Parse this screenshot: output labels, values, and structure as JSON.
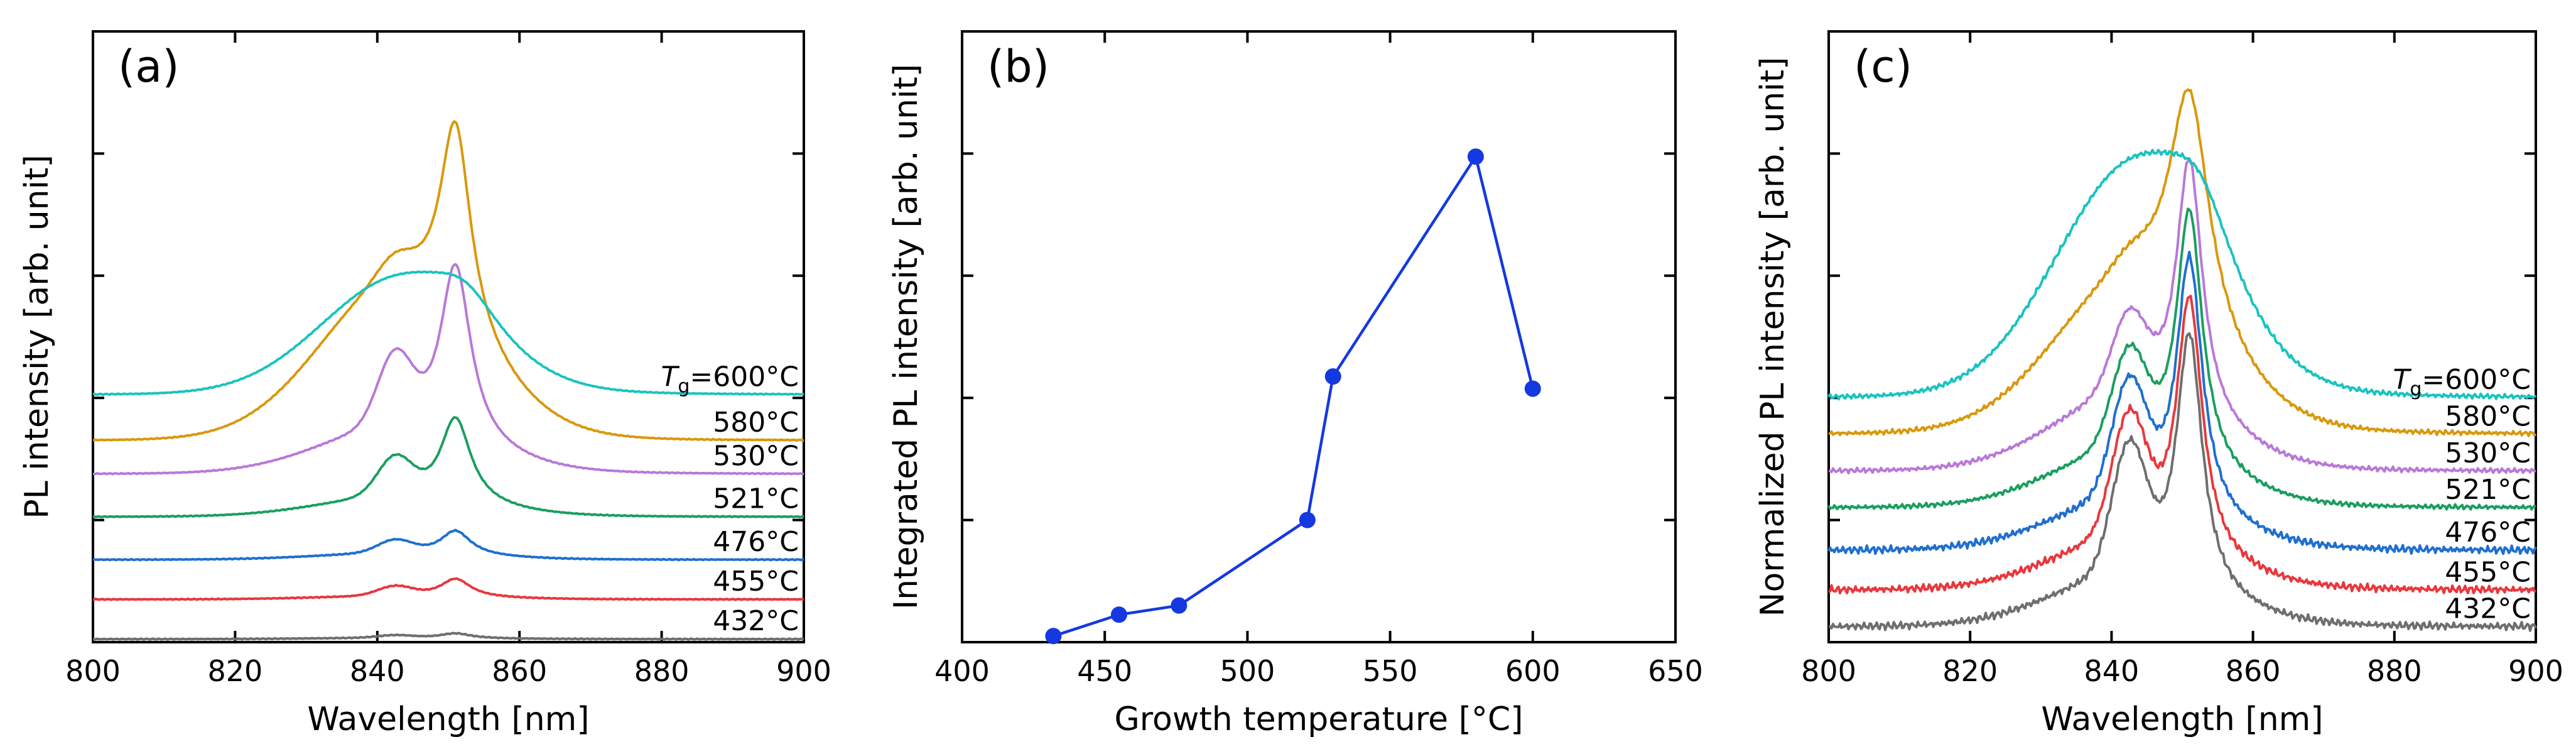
{
  "chart_data": [
    {
      "type": "line",
      "panel": "(a)",
      "xlabel": "Wavelength [nm]",
      "ylabel": "PL intensity [arb. unit]",
      "xlim": [
        800,
        900
      ],
      "xticks": [
        800,
        820,
        840,
        860,
        880,
        900
      ],
      "ylim": [
        0,
        100
      ],
      "yticks": [
        20,
        40,
        60,
        80
      ],
      "tg_symbol": "T",
      "tg_subscript": "g",
      "series": [
        {
          "name": "432°C",
          "label": "432°C",
          "color": "#6e6e6e",
          "baseline": 0.5,
          "peak2_amp": 0.8,
          "peak1_amp": 0.4,
          "broad_amp": 0.2
        },
        {
          "name": "455°C",
          "label": "455°C",
          "color": "#e8383d",
          "baseline": 7.0,
          "peak2_amp": 3.0,
          "peak1_amp": 1.5,
          "broad_amp": 0.5
        },
        {
          "name": "476°C",
          "label": "476°C",
          "color": "#1f6fcf",
          "baseline": 13.5,
          "peak2_amp": 4.0,
          "peak1_amp": 2.0,
          "broad_amp": 1.0
        },
        {
          "name": "521°C",
          "label": "521°C",
          "color": "#1a9e5f",
          "baseline": 20.5,
          "peak2_amp": 14.0,
          "peak1_amp": 6.0,
          "broad_amp": 3.0
        },
        {
          "name": "530°C",
          "label": "530°C",
          "color": "#b978d8",
          "baseline": 27.5,
          "peak2_amp": 29.0,
          "peak1_amp": 11.0,
          "broad_amp": 7.0
        },
        {
          "name": "580°C",
          "label": "580°C",
          "color": "#d9980a",
          "baseline": 33.0,
          "peak2_amp": 33.0,
          "peak1_amp": 3.0,
          "broad_amp": 25.0
        },
        {
          "name": "600°C",
          "label": "=600°C",
          "color": "#19c3c0",
          "baseline": 40.5,
          "peak2_amp": 6.0,
          "peak1_amp": 0.0,
          "broad_amp": 18.0
        }
      ]
    },
    {
      "type": "line",
      "panel": "(b)",
      "xlabel": "Growth temperature [°C]",
      "ylabel": "Integrated PL intensity [arb. unit]",
      "xlim": [
        400,
        650
      ],
      "xticks": [
        400,
        450,
        500,
        550,
        600,
        650
      ],
      "ylim": [
        0,
        100
      ],
      "yticks": [
        20,
        40,
        60,
        80
      ],
      "series": [
        {
          "name": "Integrated PL",
          "color": "#1439e0",
          "x": [
            432,
            455,
            476,
            521,
            530,
            580,
            600
          ],
          "y": [
            1.0,
            4.5,
            6.0,
            20.0,
            43.5,
            79.5,
            41.5
          ]
        }
      ]
    },
    {
      "type": "line",
      "panel": "(c)",
      "xlabel": "Wavelength [nm]",
      "ylabel": "Normalized PL intensity [arb. unit]",
      "xlim": [
        800,
        900
      ],
      "xticks": [
        800,
        820,
        840,
        860,
        880,
        900
      ],
      "ylim": [
        0,
        100
      ],
      "yticks": [
        20,
        40,
        60,
        80
      ],
      "tg_symbol": "T",
      "tg_subscript": "g",
      "series": [
        {
          "name": "432°C",
          "label": "432°C",
          "color": "#6e6e6e",
          "baseline": 2.5,
          "peak2_amp": 42.0,
          "peak1_amp": 20.0,
          "broad_amp": 8.0
        },
        {
          "name": "455°C",
          "label": "455°C",
          "color": "#e8383d",
          "baseline": 8.5,
          "peak2_amp": 42.0,
          "peak1_amp": 19.0,
          "broad_amp": 8.0
        },
        {
          "name": "476°C",
          "label": "476°C",
          "color": "#1f6fcf",
          "baseline": 15.0,
          "peak2_amp": 42.0,
          "peak1_amp": 18.0,
          "broad_amp": 8.0
        },
        {
          "name": "521°C",
          "label": "521°C",
          "color": "#1a9e5f",
          "baseline": 22.0,
          "peak2_amp": 42.0,
          "peak1_amp": 15.0,
          "broad_amp": 9.0
        },
        {
          "name": "530°C",
          "label": "530°C",
          "color": "#b978d8",
          "baseline": 28.0,
          "peak2_amp": 42.0,
          "peak1_amp": 12.0,
          "broad_amp": 12.0
        },
        {
          "name": "580°C",
          "label": "580°C",
          "color": "#d9980a",
          "baseline": 34.0,
          "peak2_amp": 38.0,
          "peak1_amp": 2.0,
          "broad_amp": 24.0
        },
        {
          "name": "600°C",
          "label": "=600°C",
          "color": "#19c3c0",
          "baseline": 40.0,
          "peak2_amp": 12.0,
          "peak1_amp": 0.0,
          "broad_amp": 36.0
        }
      ]
    }
  ]
}
